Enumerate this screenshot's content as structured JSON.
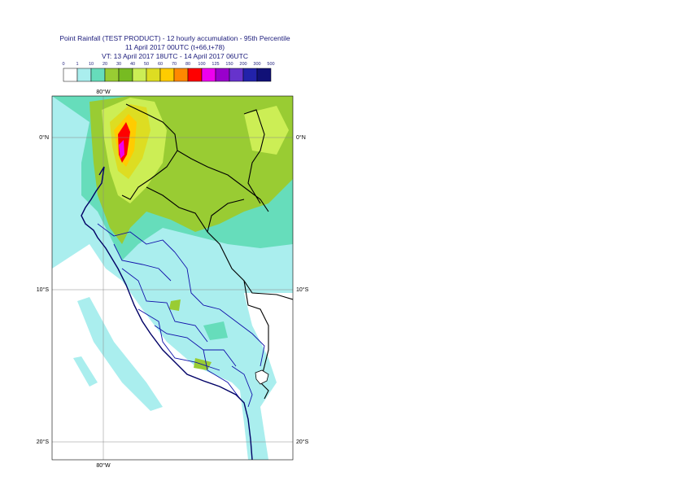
{
  "header": {
    "line1": "Point Rainfall (TEST PRODUCT) - 12 hourly accumulation - 95th Percentile",
    "line2": "11 April 2017 00UTC (t+66,t+78)",
    "line3": "VT: 13 April 2017 18UTC - 14 April 2017 06UTC"
  },
  "legend": {
    "ticks": [
      "0",
      "1",
      "10",
      "20",
      "30",
      "40",
      "50",
      "60",
      "70",
      "80",
      "100",
      "125",
      "150",
      "200",
      "300",
      "500"
    ],
    "colors": [
      "#ffffff",
      "#aaeeee",
      "#66ddbb",
      "#99cc33",
      "#77bb22",
      "#ccee55",
      "#dddd22",
      "#ffcc00",
      "#ff8800",
      "#ff0000",
      "#ee00ee",
      "#9900cc",
      "#6633cc",
      "#2222aa",
      "#111177"
    ]
  },
  "map": {
    "lat_labels": {
      "north0": "0°N",
      "s10": "10°S",
      "s20": "20°S"
    },
    "lon_labels": {
      "top": "80°W",
      "bottom": "80°W"
    }
  }
}
